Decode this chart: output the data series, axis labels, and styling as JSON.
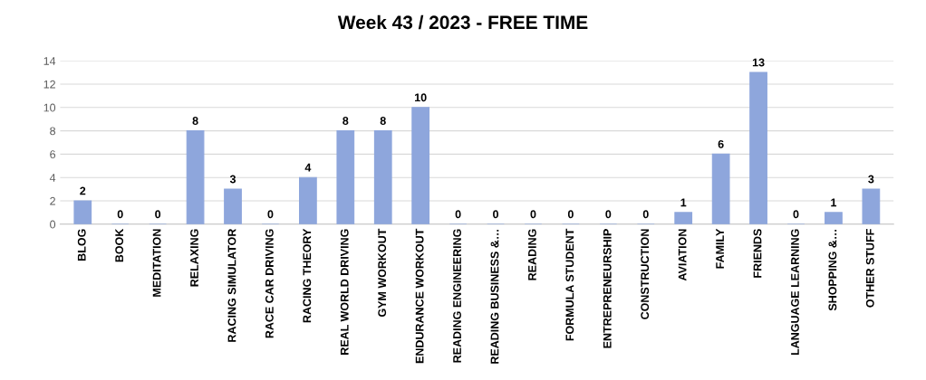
{
  "chart_data": {
    "type": "bar",
    "title": "Week 43 / 2023 - FREE TIME",
    "categories": [
      "BLOG",
      "BOOK",
      "MEDITATION",
      "RELAXING",
      "RACING SIMULATOR",
      "RACE CAR DRIVING",
      "RACING THEORY",
      "REAL WORLD DRIVING",
      "GYM WORKOUT",
      "ENDURANCE WORKOUT",
      "READING ENGINEERING",
      "READING BUSINESS &…",
      "READING",
      "FORMULA STUDENT",
      "ENTREPRENEURSHIP",
      "CONSTRUCTION",
      "AVIATION",
      "FAMILY",
      "FRIENDS",
      "LANGUAGE LEARNING",
      "SHOPPING &…",
      "OTHER STUFF"
    ],
    "values": [
      2,
      0,
      0,
      8,
      3,
      0,
      4,
      8,
      8,
      10,
      0,
      0,
      0,
      0,
      0,
      0,
      1,
      6,
      13,
      0,
      1,
      3
    ],
    "color": "#8ea6dc",
    "ylim": [
      0,
      14
    ],
    "yticks": [
      0,
      2,
      4,
      6,
      8,
      10,
      12,
      14
    ],
    "grid": "y",
    "data_labels": true
  }
}
